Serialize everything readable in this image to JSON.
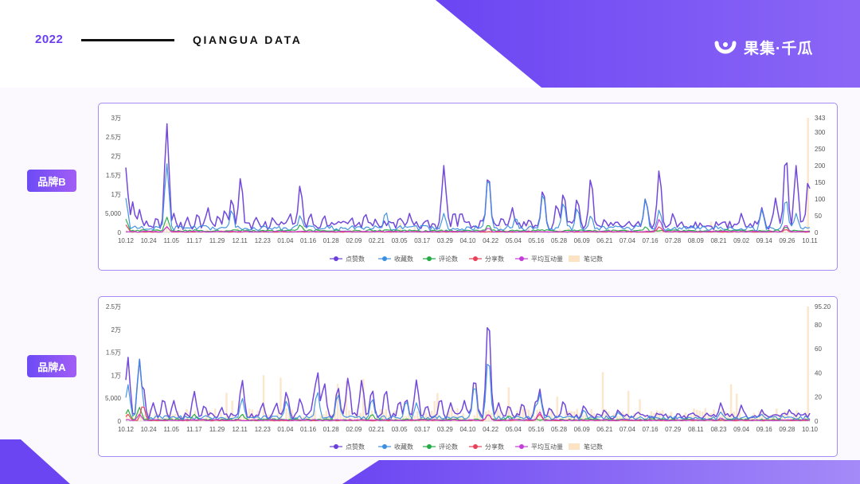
{
  "header": {
    "year": "2022",
    "title": "QIANGUA DATA",
    "logo_text": "果集·千瓜",
    "accent": "#6a3ff2"
  },
  "brands": {
    "b_label": "品牌B",
    "a_label": "品牌A"
  },
  "chart_data": [
    {
      "id": "brand-b",
      "type": "line",
      "title": "",
      "y_left_ticks": [
        "0",
        "5,000",
        "1万",
        "1.5万",
        "2万",
        "2.5万",
        "3万"
      ],
      "ylim_left": [
        0,
        30000
      ],
      "y_right_ticks": [
        "0",
        "50",
        "100",
        "150",
        "200",
        "250",
        "300",
        "343"
      ],
      "ylim_right": [
        0,
        343
      ],
      "x_ticks": [
        "10.12",
        "10.24",
        "11.05",
        "11.17",
        "11.29",
        "12.11",
        "12.23",
        "01.04",
        "01.16",
        "01.28",
        "02.09",
        "02.21",
        "03.05",
        "03.17",
        "03.29",
        "04.10",
        "04.22",
        "05.04",
        "05.16",
        "05.28",
        "06.09",
        "06.21",
        "07.04",
        "07.16",
        "07.28",
        "08.09",
        "08.21",
        "09.02",
        "09.14",
        "09.26",
        "10.11"
      ],
      "legend": [
        "点赞数",
        "收藏数",
        "评论数",
        "分享数",
        "平均互动量",
        "笔记数"
      ],
      "series": [
        {
          "name": "点赞数",
          "color": "#6a3fd9",
          "axis": "left",
          "baseline": [
            2500,
            1000
          ],
          "peaks": [
            [
              0.0,
              17000
            ],
            [
              0.01,
              8000
            ],
            [
              0.02,
              6000
            ],
            [
              0.03,
              3000
            ],
            [
              0.045,
              4000
            ],
            [
              0.06,
              28500
            ],
            [
              0.07,
              5000
            ],
            [
              0.09,
              4000
            ],
            [
              0.105,
              5000
            ],
            [
              0.12,
              6500
            ],
            [
              0.135,
              4500
            ],
            [
              0.145,
              6000
            ],
            [
              0.155,
              9000
            ],
            [
              0.168,
              14500
            ],
            [
              0.19,
              4000
            ],
            [
              0.215,
              4000
            ],
            [
              0.24,
              5000
            ],
            [
              0.255,
              12500
            ],
            [
              0.27,
              5000
            ],
            [
              0.29,
              4500
            ],
            [
              0.31,
              3000
            ],
            [
              0.33,
              4000
            ],
            [
              0.35,
              5000
            ],
            [
              0.365,
              3500
            ],
            [
              0.4,
              4000
            ],
            [
              0.415,
              5000
            ],
            [
              0.44,
              3500
            ],
            [
              0.47,
              4500
            ],
            [
              0.48,
              5500
            ],
            [
              0.5,
              3000
            ],
            [
              0.52,
              3500
            ],
            [
              0.465,
              17500
            ],
            [
              0.49,
              5500
            ],
            [
              0.53,
              15500
            ],
            [
              0.55,
              4000
            ],
            [
              0.565,
              6500
            ],
            [
              0.59,
              3500
            ],
            [
              0.61,
              11500
            ],
            [
              0.63,
              7500
            ],
            [
              0.64,
              10500
            ],
            [
              0.66,
              9000
            ],
            [
              0.68,
              14500
            ],
            [
              0.7,
              3500
            ],
            [
              0.72,
              2500
            ],
            [
              0.74,
              2000
            ],
            [
              0.76,
              9000
            ],
            [
              0.78,
              16500
            ],
            [
              0.8,
              5000
            ],
            [
              0.84,
              2500
            ],
            [
              0.87,
              2000
            ],
            [
              0.9,
              5000
            ],
            [
              0.93,
              6500
            ],
            [
              0.95,
              9000
            ],
            [
              0.965,
              20500
            ],
            [
              0.98,
              17500
            ],
            [
              0.998,
              14000
            ]
          ]
        },
        {
          "name": "收藏数",
          "color": "#3b8fe0",
          "axis": "left",
          "baseline": [
            1500,
            700
          ],
          "peaks": [
            [
              0.0,
              9000
            ],
            [
              0.06,
              18000
            ],
            [
              0.155,
              6000
            ],
            [
              0.255,
              4500
            ],
            [
              0.38,
              5500
            ],
            [
              0.465,
              5000
            ],
            [
              0.53,
              15000
            ],
            [
              0.57,
              4000
            ],
            [
              0.61,
              10500
            ],
            [
              0.64,
              8000
            ],
            [
              0.66,
              6500
            ],
            [
              0.68,
              4500
            ],
            [
              0.76,
              9000
            ],
            [
              0.78,
              6000
            ],
            [
              0.93,
              6000
            ],
            [
              0.965,
              9000
            ],
            [
              0.98,
              5000
            ]
          ]
        },
        {
          "name": "评论数",
          "color": "#22aa44",
          "axis": "left",
          "baseline": [
            600,
            300
          ],
          "peaks": [
            [
              0.0,
              3500
            ],
            [
              0.06,
              4000
            ],
            [
              0.255,
              2000
            ],
            [
              0.53,
              2000
            ],
            [
              0.76,
              1500
            ],
            [
              0.965,
              1500
            ]
          ]
        },
        {
          "name": "分享数",
          "color": "#e84056",
          "axis": "left",
          "baseline": [
            200,
            150
          ],
          "peaks": [
            [
              0.0,
              2000
            ],
            [
              0.06,
              1500
            ],
            [
              0.78,
              1500
            ],
            [
              0.965,
              800
            ]
          ]
        },
        {
          "name": "平均互动量",
          "color": "#c43cd9",
          "axis": "left",
          "baseline": [
            300,
            200
          ],
          "peaks": [
            [
              0.06,
              1500
            ],
            [
              0.53,
              1200
            ],
            [
              0.78,
              3500
            ],
            [
              0.965,
              2000
            ]
          ]
        }
      ],
      "bars": {
        "name": "笔记数",
        "color": "#fbe3c4",
        "axis": "right",
        "typical": 5,
        "last": 343
      }
    },
    {
      "id": "brand-a",
      "type": "line",
      "title": "",
      "y_left_ticks": [
        "0",
        "5,000",
        "1万",
        "1.5万",
        "2万",
        "2.5万"
      ],
      "ylim_left": [
        0,
        25000
      ],
      "y_right_ticks": [
        "0",
        "20",
        "40",
        "60",
        "80",
        "95.20"
      ],
      "ylim_right": [
        0,
        95.2
      ],
      "x_ticks": [
        "10.12",
        "10.24",
        "11.05",
        "11.17",
        "11.29",
        "12.11",
        "12.23",
        "01.04",
        "01.16",
        "01.28",
        "02.09",
        "02.21",
        "03.05",
        "03.17",
        "03.29",
        "04.10",
        "04.22",
        "05.04",
        "05.16",
        "05.28",
        "06.09",
        "06.21",
        "07.04",
        "07.16",
        "07.29",
        "08.11",
        "08.23",
        "09.04",
        "09.16",
        "09.28",
        "10.10"
      ],
      "legend": [
        "点赞数",
        "收藏数",
        "评论数",
        "分享数",
        "平均互动量",
        "笔记数"
      ],
      "series": [
        {
          "name": "点赞数",
          "color": "#6a3fd9",
          "axis": "left",
          "baseline": [
            1500,
            700
          ],
          "peaks": [
            [
              0.003,
              14000
            ],
            [
              0.02,
              13500
            ],
            [
              0.025,
              8000
            ],
            [
              0.04,
              4000
            ],
            [
              0.055,
              5000
            ],
            [
              0.07,
              4500
            ],
            [
              0.1,
              6500
            ],
            [
              0.115,
              3500
            ],
            [
              0.14,
              3000
            ],
            [
              0.17,
              9000
            ],
            [
              0.2,
              4000
            ],
            [
              0.22,
              4000
            ],
            [
              0.235,
              6500
            ],
            [
              0.255,
              5000
            ],
            [
              0.275,
              5500
            ],
            [
              0.28,
              11000
            ],
            [
              0.29,
              8500
            ],
            [
              0.31,
              7500
            ],
            [
              0.325,
              9500
            ],
            [
              0.345,
              9000
            ],
            [
              0.36,
              7000
            ],
            [
              0.38,
              7000
            ],
            [
              0.4,
              4500
            ],
            [
              0.41,
              5000
            ],
            [
              0.425,
              9000
            ],
            [
              0.44,
              3500
            ],
            [
              0.46,
              5000
            ],
            [
              0.475,
              4000
            ],
            [
              0.495,
              4500
            ],
            [
              0.51,
              9500
            ],
            [
              0.53,
              23000
            ],
            [
              0.545,
              4000
            ],
            [
              0.56,
              3500
            ],
            [
              0.58,
              4000
            ],
            [
              0.6,
              4500
            ],
            [
              0.605,
              7000
            ],
            [
              0.62,
              3000
            ],
            [
              0.64,
              4500
            ],
            [
              0.67,
              3500
            ],
            [
              0.7,
              2500
            ],
            [
              0.72,
              2500
            ],
            [
              0.75,
              2000
            ],
            [
              0.78,
              1500
            ],
            [
              0.83,
              1800
            ],
            [
              0.87,
              4000
            ],
            [
              0.9,
              3500
            ],
            [
              0.93,
              2500
            ],
            [
              0.97,
              2500
            ]
          ]
        },
        {
          "name": "收藏数",
          "color": "#3b8fe0",
          "axis": "left",
          "baseline": [
            1000,
            500
          ],
          "peaks": [
            [
              0.003,
              8000
            ],
            [
              0.02,
              13500
            ],
            [
              0.025,
              3500
            ],
            [
              0.17,
              5000
            ],
            [
              0.235,
              4500
            ],
            [
              0.28,
              6500
            ],
            [
              0.31,
              6000
            ],
            [
              0.36,
              5000
            ],
            [
              0.41,
              4500
            ],
            [
              0.425,
              4000
            ],
            [
              0.51,
              8000
            ],
            [
              0.53,
              14000
            ],
            [
              0.605,
              6000
            ],
            [
              0.6,
              3500
            ],
            [
              0.67,
              2500
            ],
            [
              0.72,
              2000
            ],
            [
              0.87,
              2000
            ],
            [
              0.93,
              1500
            ]
          ]
        },
        {
          "name": "评论数",
          "color": "#22aa44",
          "axis": "left",
          "baseline": [
            400,
            200
          ],
          "peaks": [
            [
              0.003,
              2500
            ],
            [
              0.02,
              3000
            ],
            [
              0.1,
              1500
            ],
            [
              0.17,
              1500
            ],
            [
              0.36,
              1500
            ],
            [
              0.53,
              1500
            ],
            [
              0.56,
              1200
            ]
          ]
        },
        {
          "name": "分享数",
          "color": "#e84056",
          "axis": "left",
          "baseline": [
            200,
            100
          ],
          "peaks": [
            [
              0.003,
              1500
            ],
            [
              0.025,
              3500
            ],
            [
              0.53,
              1500
            ],
            [
              0.605,
              1500
            ]
          ]
        },
        {
          "name": "平均互动量",
          "color": "#c43cd9",
          "axis": "left",
          "baseline": [
            300,
            200
          ],
          "peaks": [
            [
              0.02,
              1500
            ],
            [
              0.53,
              1500
            ],
            [
              0.605,
              2000
            ],
            [
              0.87,
              700
            ]
          ]
        }
      ],
      "bars": {
        "name": "笔记数",
        "color": "#fbe3c4",
        "axis": "right",
        "typical": 6,
        "last": 95.2
      }
    }
  ]
}
